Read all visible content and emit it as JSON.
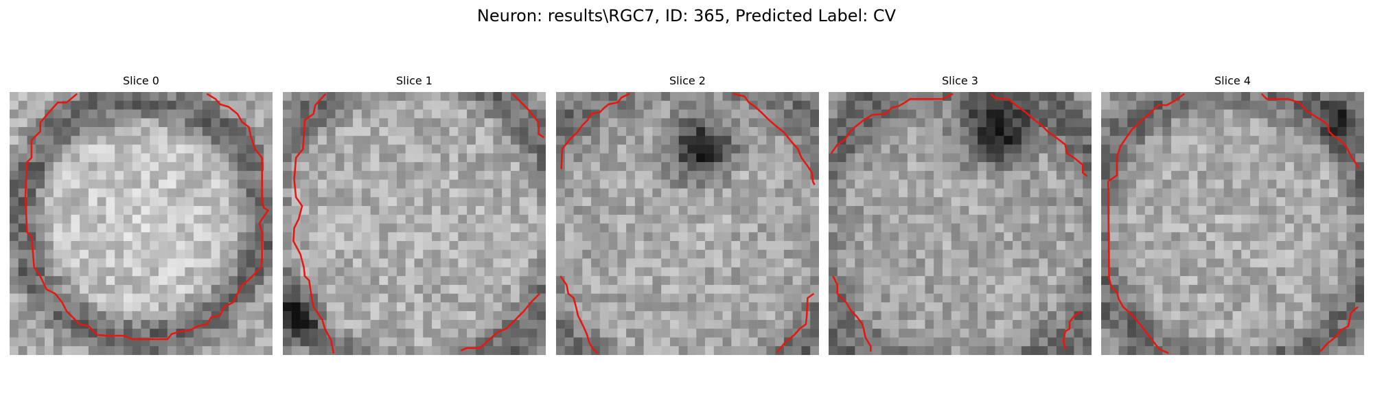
{
  "figure": {
    "title": "Neuron: results\\RGC7, ID: 365, Predicted Label: CV"
  },
  "panels": [
    {
      "title": "Slice 0",
      "contour_color": "#e8160e"
    },
    {
      "title": "Slice 1",
      "contour_color": "#e8160e"
    },
    {
      "title": "Slice 2",
      "contour_color": "#e8160e"
    },
    {
      "title": "Slice 3",
      "contour_color": "#e8160e"
    },
    {
      "title": "Slice 4",
      "contour_color": "#e8160e"
    }
  ]
}
